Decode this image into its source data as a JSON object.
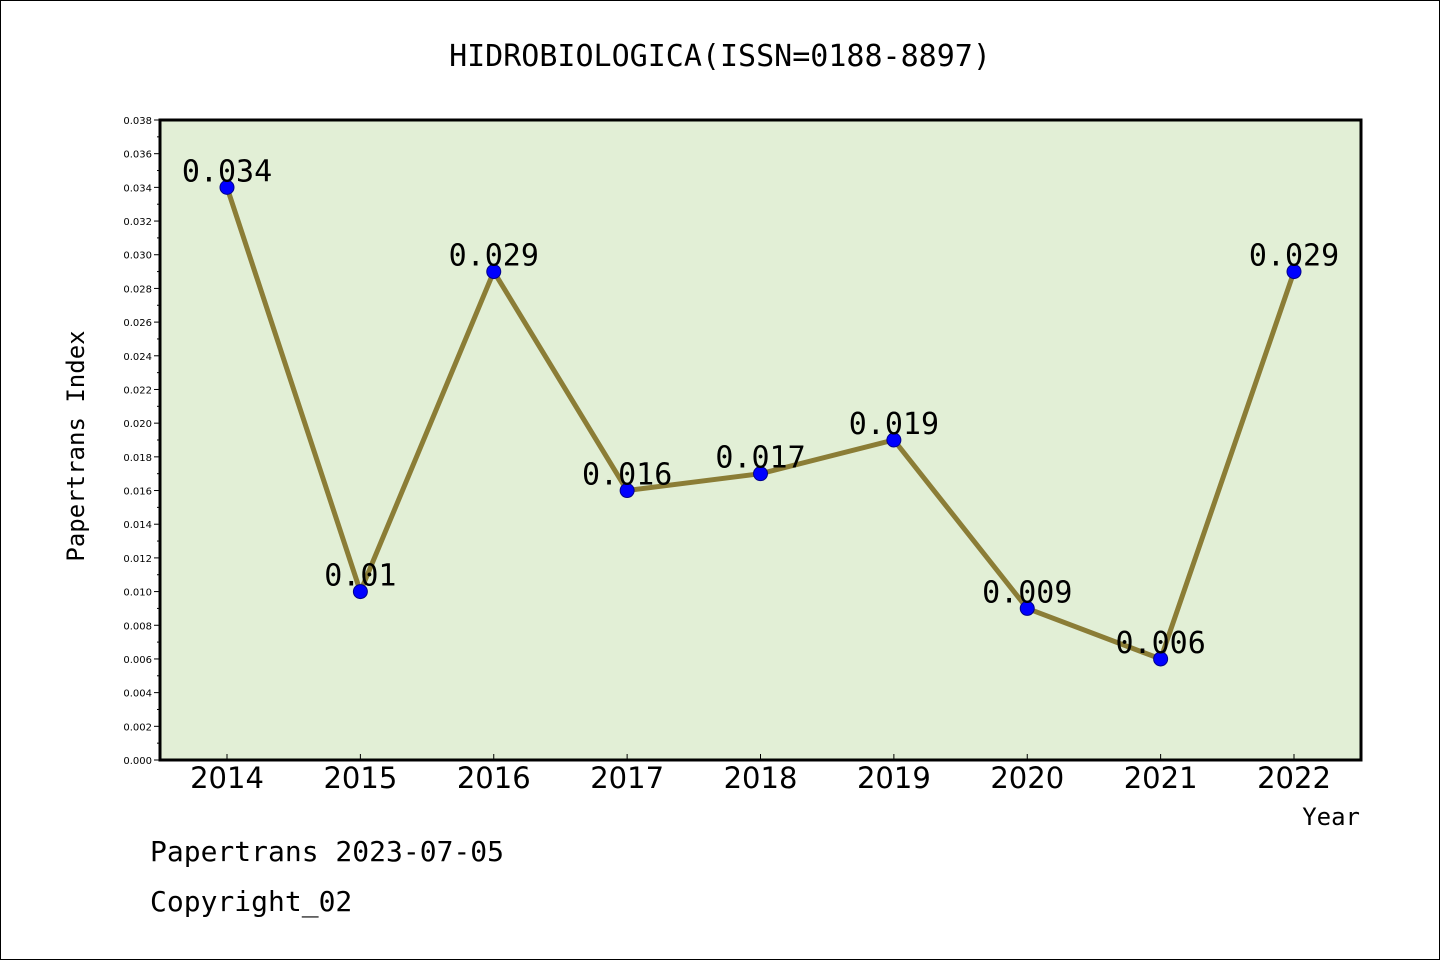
{
  "chart_data": {
    "type": "line",
    "title": "HIDROBIOLOGICA(ISSN=0188-8897)",
    "xlabel": "Year",
    "ylabel": "Papertrans Index",
    "categories": [
      "2014",
      "2015",
      "2016",
      "2017",
      "2018",
      "2019",
      "2020",
      "2021",
      "2022"
    ],
    "values": [
      0.034,
      0.01,
      0.029,
      0.016,
      0.017,
      0.019,
      0.009,
      0.006,
      0.029
    ],
    "data_labels": [
      "0.034",
      "0.01",
      "0.029",
      "0.016",
      "0.017",
      "0.019",
      "0.009",
      "0.006",
      "0.029"
    ],
    "ylim": [
      0,
      0.038
    ],
    "yticks": [
      "0.000",
      "0.002",
      "0.004",
      "0.006",
      "0.008",
      "0.010",
      "0.012",
      "0.014",
      "0.016",
      "0.018",
      "0.020",
      "0.022",
      "0.024",
      "0.026",
      "0.028",
      "0.030",
      "0.032",
      "0.034",
      "0.036",
      "0.038"
    ],
    "grid": false,
    "colors": {
      "plot_background": "#e2efd6",
      "line": "#8b7d36",
      "marker": "#0000ff"
    }
  },
  "footer": {
    "date_line": "Papertrans 2023-07-05",
    "copyright": "Copyright_02"
  }
}
